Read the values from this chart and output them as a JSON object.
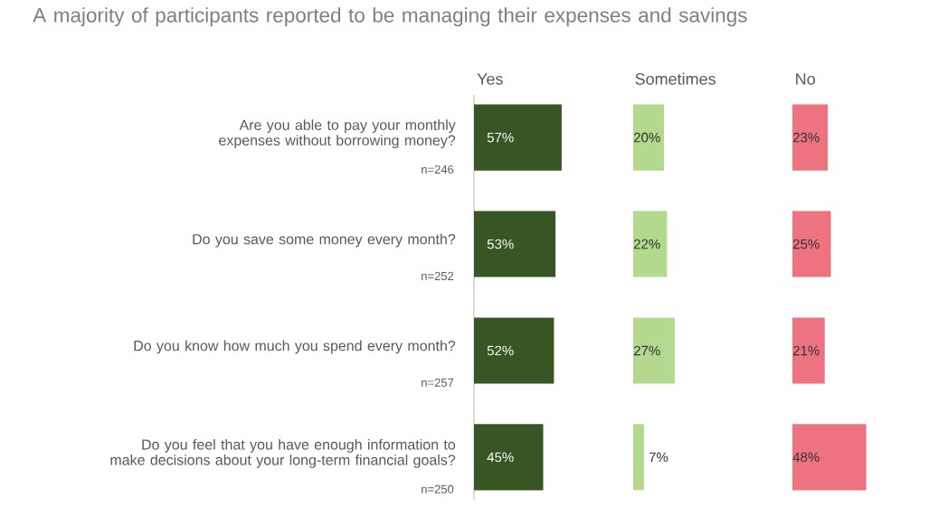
{
  "chart_data": [
    {
      "type": "bar",
      "orientation": "horizontal",
      "title": "A majority of participants reported to be managing their expenses and savings",
      "subtitle": "Yes",
      "categories": [
        "Are you able to pay your monthly expenses without borrowing money?",
        "Do you save some money every month?",
        "Do you know how much you spend every month?",
        "Do you feel that you have enough information to make decisions about your long-term financial goals?"
      ],
      "values": [
        57,
        53,
        52,
        45
      ],
      "value_labels": [
        "57%",
        "53%",
        "52%",
        "45%"
      ],
      "color": "#375623",
      "tick_labels": "y",
      "annotations": [
        "n=246",
        "n=252",
        "n=257",
        "n=250"
      ]
    },
    {
      "type": "bar",
      "orientation": "horizontal",
      "title": "Sometimes",
      "values": [
        20,
        22,
        27,
        7
      ],
      "value_labels": [
        "20%",
        "22%",
        "27%",
        "7%"
      ],
      "color": "#b3d98f",
      "tick_labels": false
    },
    {
      "type": "bar",
      "orientation": "horizontal",
      "title": "No",
      "values": [
        23,
        25,
        21,
        48
      ],
      "value_labels": [
        "23%",
        "25%",
        "21%",
        "48%"
      ],
      "color": "#ee7381",
      "tick_labels": false
    }
  ]
}
